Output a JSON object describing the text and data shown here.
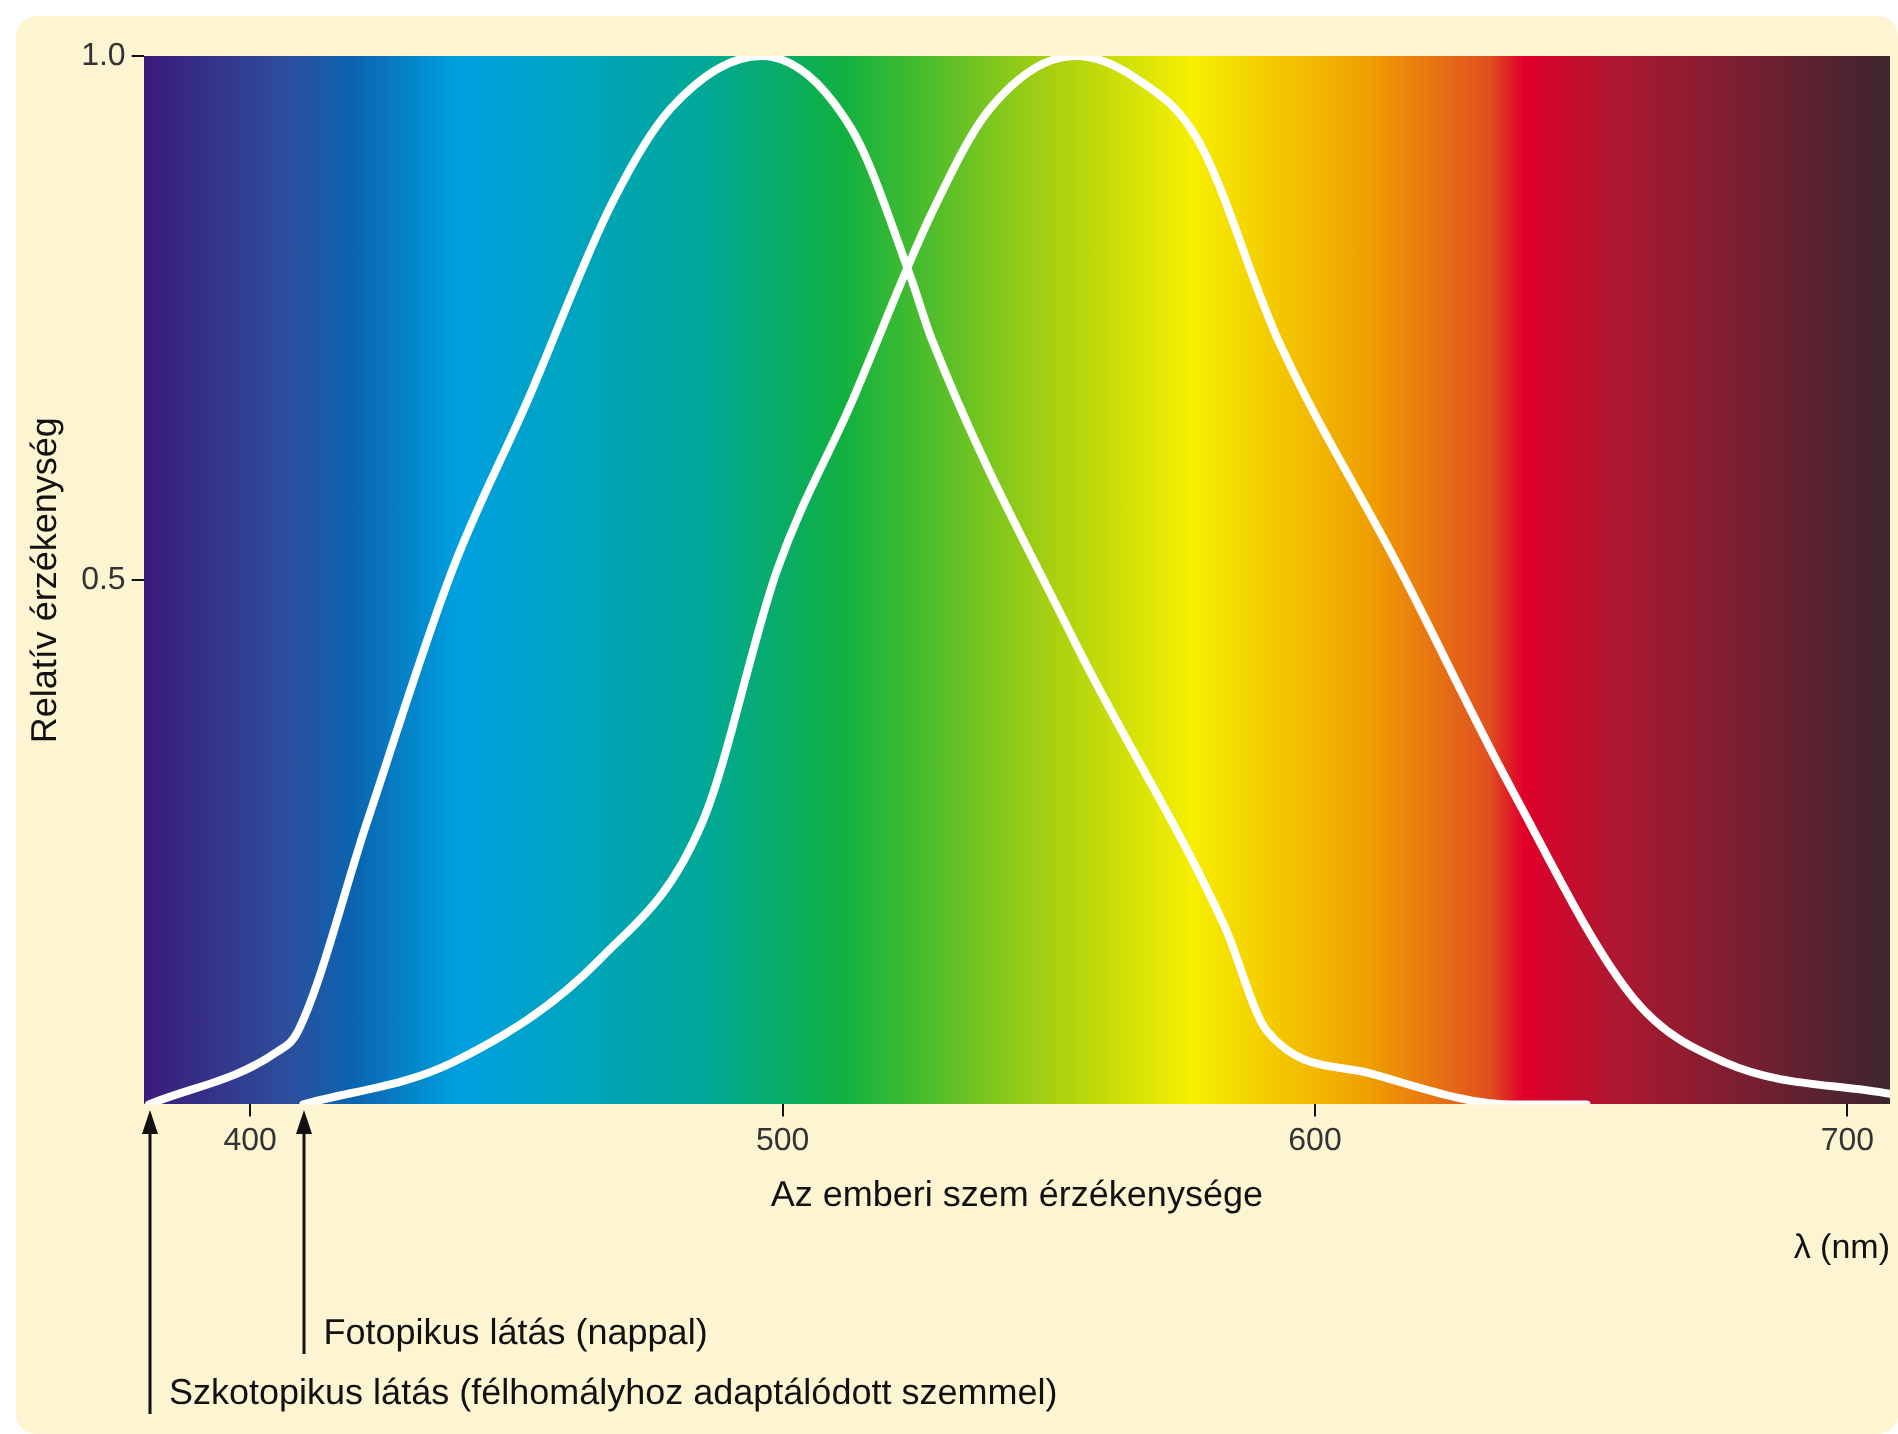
{
  "chart_data": {
    "type": "line",
    "xlabel": "Az emberi szem érzékenysége",
    "ylabel": "Relatív érzékenység",
    "xlim": [
      380,
      708
    ],
    "xticks": [
      400,
      500,
      600,
      700
    ],
    "ylim": [
      0,
      1
    ],
    "yticks": [
      0.5,
      {
        "value": 1,
        "label": "1.0"
      }
    ],
    "grid": false,
    "legend": false,
    "marker": "none",
    "line_style": "solid",
    "series": [
      {
        "color": "#ffffff",
        "x": [
          381,
          405,
          409,
          422,
          438,
          452,
          468,
          479,
          496,
          513,
          524,
          528,
          555,
          583,
          591,
          610,
          637,
          651
        ],
        "values": [
          0,
          0.05,
          0.07,
          0.27,
          0.51,
          0.67,
          0.86,
          0.95,
          1.0,
          0.93,
          0.79,
          0.73,
          0.44,
          0.17,
          0.07,
          0.03,
          0.0,
          0
        ]
      },
      {
        "color": "#ffffff",
        "x": [
          410,
          438,
          466,
          485,
          499,
          513,
          528,
          539,
          555,
          566,
          578,
          593,
          616,
          637,
          660,
          677,
          708
        ],
        "values": [
          0,
          0.04,
          0.14,
          0.27,
          0.51,
          0.67,
          0.85,
          0.95,
          1.0,
          0.98,
          0.92,
          0.73,
          0.51,
          0.3,
          0.1,
          0.04,
          0.01
        ]
      }
    ],
    "annotations": [
      "λ (nm)",
      {
        "text": "Fotopikus látás (nappal)",
        "x": 410,
        "y": 0
      },
      {
        "text": "Szkotopikus látás (félhomályhoz adaptálódott szemmel)",
        "x": 381,
        "y": 0
      }
    ]
  }
}
